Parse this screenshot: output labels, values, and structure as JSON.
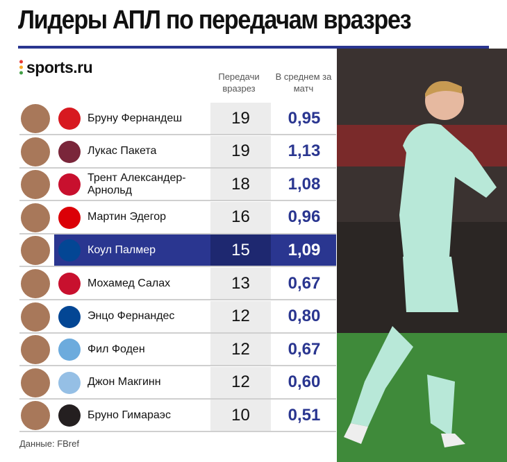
{
  "header": {
    "title": "Лидеры АПЛ по передачам вразрез",
    "logo": "sports.ru"
  },
  "table": {
    "columns": [
      "Передачи вразрез",
      "В среднем за матч"
    ],
    "rows": [
      {
        "name": "Бруну Фернандеш",
        "passes": 19,
        "per_match": "0,95"
      },
      {
        "name": "Лукас Пакета",
        "passes": 19,
        "per_match": "1,13"
      },
      {
        "name": "Трент Александер-Арнольд",
        "passes": 18,
        "per_match": "1,08"
      },
      {
        "name": "Мартин Эдегор",
        "passes": 16,
        "per_match": "0,96"
      },
      {
        "name": "Коул Палмер",
        "passes": 15,
        "per_match": "1,09",
        "highlighted": true
      },
      {
        "name": "Мохамед Салах",
        "passes": 13,
        "per_match": "0,67"
      },
      {
        "name": "Энцо Фернандес",
        "passes": 12,
        "per_match": "0,80"
      },
      {
        "name": "Фил Фоден",
        "passes": 12,
        "per_match": "0,67"
      },
      {
        "name": "Джон Макгинн",
        "passes": 12,
        "per_match": "0,60"
      },
      {
        "name": "Бруно Гимараэс",
        "passes": 10,
        "per_match": "0,51"
      }
    ]
  },
  "footer": {
    "source": "Данные: FBref"
  }
}
